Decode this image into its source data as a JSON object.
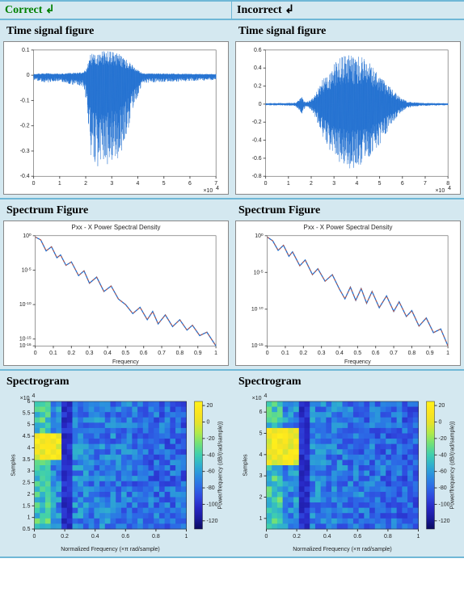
{
  "headers": {
    "left": "Correct ↲",
    "right": "Incorrect ↲"
  },
  "rows": [
    {
      "title_left": "Time signal figure",
      "title_right": "Time signal figure",
      "kind": "time"
    },
    {
      "title_left": "Spectrum Figure",
      "title_right": "Spectrum Figure",
      "kind": "spectrum"
    },
    {
      "title_left": "Spectrogram",
      "title_right": "Spectrogram",
      "kind": "spectrogram"
    }
  ],
  "time_left": {
    "type": "line",
    "color": "#1f6fd0",
    "xlim": [
      0,
      7
    ],
    "x_exp": 4,
    "ylim": [
      -0.4,
      0.1
    ],
    "yticks": [
      -0.4,
      -0.3,
      -0.2,
      -0.1,
      0,
      0.1
    ],
    "xticks": [
      0,
      1,
      2,
      3,
      4,
      5,
      6,
      7
    ],
    "envelope": [
      [
        0,
        0.005
      ],
      [
        0.5,
        0.008
      ],
      [
        1.0,
        0.006
      ],
      [
        1.5,
        0.01
      ],
      [
        1.9,
        0.012
      ],
      [
        2.05,
        0.03
      ],
      [
        2.15,
        0.08
      ],
      [
        2.25,
        0.09
      ],
      [
        2.45,
        0.095
      ],
      [
        2.7,
        0.095
      ],
      [
        2.9,
        0.095
      ],
      [
        3.1,
        0.09
      ],
      [
        3.3,
        0.085
      ],
      [
        3.5,
        0.07
      ],
      [
        3.7,
        0.05
      ],
      [
        3.9,
        0.03
      ],
      [
        4.05,
        0.018
      ],
      [
        4.2,
        0.008
      ],
      [
        5,
        0.007
      ],
      [
        6,
        0.006
      ],
      [
        7,
        0.005
      ]
    ],
    "neg_scale": 3.8,
    "background_color": "#ffffff",
    "axis_color": "#555555"
  },
  "time_right": {
    "type": "line",
    "color": "#1f6fd0",
    "xlim": [
      0,
      8
    ],
    "x_exp": 4,
    "ylim": [
      -0.8,
      0.6
    ],
    "yticks": [
      -0.8,
      -0.6,
      -0.4,
      -0.2,
      0,
      0.2,
      0.4,
      0.6
    ],
    "xticks": [
      0,
      1,
      2,
      3,
      4,
      5,
      6,
      7,
      8
    ],
    "envelope": [
      [
        0,
        0.01
      ],
      [
        0.8,
        0.012
      ],
      [
        1.3,
        0.015
      ],
      [
        1.6,
        0.08
      ],
      [
        1.75,
        0.02
      ],
      [
        2.0,
        0.05
      ],
      [
        2.2,
        0.12
      ],
      [
        2.5,
        0.28
      ],
      [
        2.9,
        0.42
      ],
      [
        3.3,
        0.52
      ],
      [
        3.7,
        0.55
      ],
      [
        4.1,
        0.54
      ],
      [
        4.5,
        0.48
      ],
      [
        4.9,
        0.38
      ],
      [
        5.3,
        0.25
      ],
      [
        5.6,
        0.15
      ],
      [
        5.9,
        0.08
      ],
      [
        6.2,
        0.03
      ],
      [
        6.8,
        0.015
      ],
      [
        8,
        0.01
      ]
    ],
    "neg_scale": 1.3,
    "background_color": "#ffffff",
    "axis_color": "#555555"
  },
  "spectrum_left": {
    "type": "line",
    "title": "Pxx - X Power Spectral Density",
    "color_main": "#1f6fd0",
    "color_dash": "#d05030",
    "xlim": [
      0,
      1
    ],
    "xticks": [
      0,
      0.1,
      0.2,
      0.3,
      0.4,
      0.5,
      0.6,
      0.7,
      0.8,
      0.9,
      1
    ],
    "xlabel": "Frequency",
    "ylog": true,
    "ylim_exp": [
      -16,
      0
    ],
    "ytick_exp": [
      0,
      -5,
      -10,
      -15,
      -16
    ],
    "points": [
      [
        0.0,
        -0.2
      ],
      [
        0.03,
        -0.6
      ],
      [
        0.06,
        -2.2
      ],
      [
        0.09,
        -1.6
      ],
      [
        0.12,
        -3.2
      ],
      [
        0.14,
        -2.8
      ],
      [
        0.17,
        -4.3
      ],
      [
        0.2,
        -3.8
      ],
      [
        0.24,
        -5.8
      ],
      [
        0.27,
        -5.1
      ],
      [
        0.3,
        -6.9
      ],
      [
        0.34,
        -6.0
      ],
      [
        0.38,
        -8.1
      ],
      [
        0.42,
        -7.3
      ],
      [
        0.46,
        -9.2
      ],
      [
        0.5,
        -10.0
      ],
      [
        0.54,
        -11.3
      ],
      [
        0.58,
        -10.4
      ],
      [
        0.62,
        -12.2
      ],
      [
        0.65,
        -11.0
      ],
      [
        0.68,
        -12.8
      ],
      [
        0.72,
        -11.5
      ],
      [
        0.76,
        -13.2
      ],
      [
        0.8,
        -12.2
      ],
      [
        0.84,
        -13.7
      ],
      [
        0.87,
        -13.0
      ],
      [
        0.91,
        -14.5
      ],
      [
        0.95,
        -14.0
      ],
      [
        1.0,
        -16.0
      ]
    ]
  },
  "spectrum_right": {
    "type": "line",
    "title": "Pxx - X Power Spectral Density",
    "color_main": "#1f6fd0",
    "color_dash": "#d05030",
    "xlim": [
      0,
      1
    ],
    "xticks": [
      0,
      0.1,
      0.2,
      0.3,
      0.4,
      0.5,
      0.6,
      0.7,
      0.8,
      0.9,
      1
    ],
    "xlabel": "Frequency",
    "ylog": true,
    "ylim_exp": [
      -15,
      0
    ],
    "ytick_exp": [
      0,
      -5,
      -10,
      -15
    ],
    "points": [
      [
        0.0,
        -0.2
      ],
      [
        0.03,
        -0.7
      ],
      [
        0.06,
        -2.0
      ],
      [
        0.09,
        -1.3
      ],
      [
        0.12,
        -2.8
      ],
      [
        0.14,
        -2.2
      ],
      [
        0.18,
        -4.1
      ],
      [
        0.21,
        -3.3
      ],
      [
        0.25,
        -5.3
      ],
      [
        0.28,
        -4.5
      ],
      [
        0.32,
        -6.2
      ],
      [
        0.36,
        -5.3
      ],
      [
        0.4,
        -7.3
      ],
      [
        0.43,
        -8.6
      ],
      [
        0.46,
        -7.0
      ],
      [
        0.49,
        -8.8
      ],
      [
        0.52,
        -7.2
      ],
      [
        0.55,
        -9.2
      ],
      [
        0.58,
        -7.6
      ],
      [
        0.62,
        -9.8
      ],
      [
        0.66,
        -8.2
      ],
      [
        0.7,
        -10.3
      ],
      [
        0.73,
        -9.0
      ],
      [
        0.77,
        -11.0
      ],
      [
        0.8,
        -10.2
      ],
      [
        0.84,
        -12.3
      ],
      [
        0.88,
        -11.2
      ],
      [
        0.92,
        -13.2
      ],
      [
        0.96,
        -12.7
      ],
      [
        1.0,
        -15.0
      ]
    ]
  },
  "spectrogram_left": {
    "type": "heatmap",
    "xlim": [
      0,
      1
    ],
    "xticks": [
      0,
      0.2,
      0.4,
      0.6,
      0.8,
      1
    ],
    "xlabel": "Normalized Frequency (×π rad/sample)",
    "ylim": [
      0.5,
      6
    ],
    "y_exp": 4,
    "yticks": [
      0.5,
      1,
      1.5,
      2,
      2.5,
      3,
      3.5,
      4,
      4.5,
      5,
      5.5,
      6
    ],
    "ylabel": "Samples",
    "cbar_label": "Power/frequency (dB/(rad/sample))",
    "cbar_ticks": [
      -120,
      -100,
      -80,
      -60,
      -40,
      -20,
      0,
      20
    ],
    "cbar_range": [
      -130,
      25
    ],
    "cols": 28,
    "rows_n": 24,
    "hot_rows": [
      6,
      7,
      8,
      9,
      10
    ],
    "hot_col_max": 4,
    "band_cols": [
      5,
      6
    ],
    "seed": 11
  },
  "spectrogram_right": {
    "type": "heatmap",
    "xlim": [
      0,
      1
    ],
    "xticks": [
      0,
      0.2,
      0.4,
      0.6,
      0.8,
      1
    ],
    "xlabel": "Normalized Frequency (×π rad/sample)",
    "ylim": [
      0.5,
      6.5
    ],
    "y_exp": 4,
    "yticks": [
      1,
      2,
      3,
      4,
      5,
      6
    ],
    "ylabel": "Samples",
    "cbar_label": "Power/frequency (dB/(rad/sample))",
    "cbar_ticks": [
      -120,
      -100,
      -80,
      -60,
      -40,
      -20,
      0,
      20
    ],
    "cbar_range": [
      -130,
      25
    ],
    "cols": 28,
    "rows_n": 24,
    "hot_rows": [
      5,
      6,
      7,
      8,
      9,
      10,
      11
    ],
    "hot_col_max": 5,
    "band_cols": [
      6,
      7
    ],
    "seed": 29
  },
  "colormap": [
    "#0b0b60",
    "#1a1a9c",
    "#2727c3",
    "#2f47de",
    "#2c6be6",
    "#2a8de0",
    "#2fb0ce",
    "#3fcfae",
    "#6fe07a",
    "#aeea4b",
    "#e6e22a",
    "#fce51e",
    "#fff21a"
  ]
}
